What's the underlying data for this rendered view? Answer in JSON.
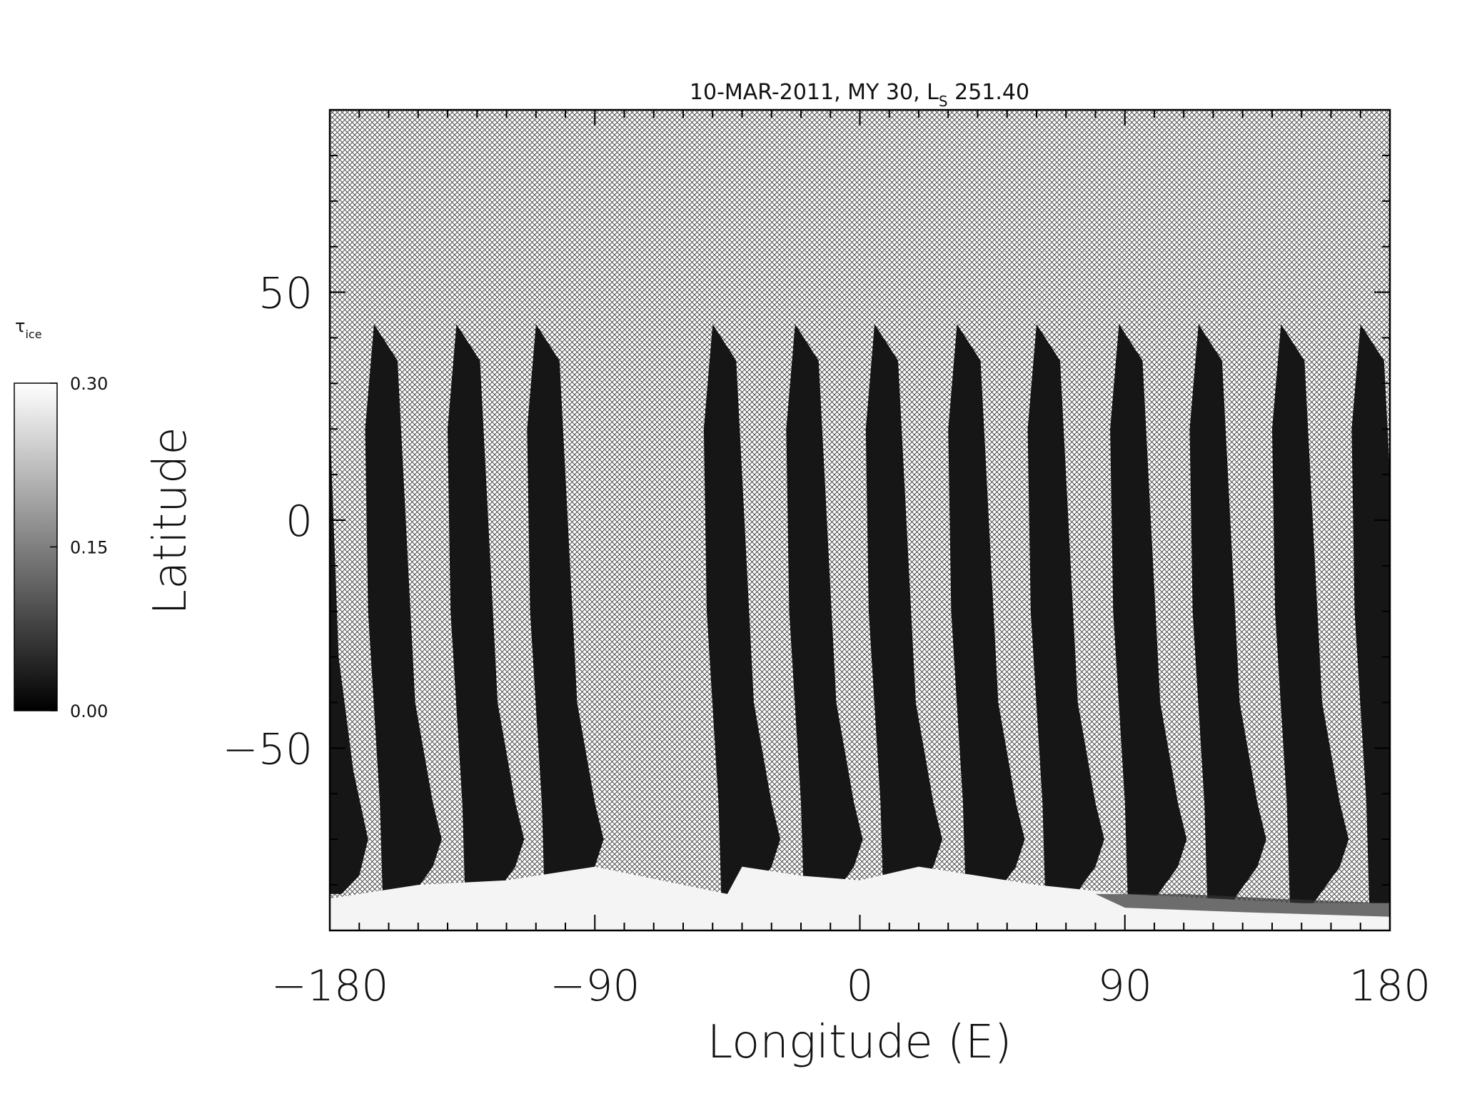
{
  "chart_data": {
    "type": "heatmap",
    "title": "10-MAR-2011, MY 30,  L",
    "title_subscript": "S",
    "title_tail": " 251.40",
    "xlabel": "Longitude (E)",
    "ylabel": "Latitude",
    "xlim": [
      -180,
      180
    ],
    "ylim": [
      -90,
      90
    ],
    "xticks": [
      -180,
      -90,
      0,
      90,
      180
    ],
    "xtick_labels": [
      "−180",
      "−90",
      "0",
      "90",
      "180"
    ],
    "yticks": [
      50,
      0,
      -50
    ],
    "ytick_labels": [
      "50",
      "0",
      "−50"
    ],
    "x_minor_step": 10,
    "y_minor_step": 10,
    "no_data": "crosshatch",
    "colorbar": {
      "label": "τ",
      "label_subscript": "ice",
      "range": [
        0.0,
        0.3
      ],
      "ticks": [
        0.3,
        0.15,
        0.0
      ],
      "tick_labels": [
        "0.30",
        "0.15",
        "0.00"
      ],
      "colors": [
        "#000000",
        "#ffffff"
      ]
    },
    "swaths": [
      {
        "lon_top": -165,
        "lat_top": 43
      },
      {
        "lon_top": -137,
        "lat_top": 43
      },
      {
        "lon_top": -110,
        "lat_top": 43
      },
      {
        "lon_top": -50,
        "lat_top": 43
      },
      {
        "lon_top": -22,
        "lat_top": 43
      },
      {
        "lon_top": 5,
        "lat_top": 43
      },
      {
        "lon_top": 33,
        "lat_top": 43
      },
      {
        "lon_top": 60,
        "lat_top": 43
      },
      {
        "lon_top": 88,
        "lat_top": 43
      },
      {
        "lon_top": 115,
        "lat_top": 43
      },
      {
        "lon_top": 143,
        "lat_top": 43
      },
      {
        "lon_top": 170,
        "lat_top": 43
      }
    ],
    "polar_cap": {
      "lat_edge": -76,
      "tau": 0.3
    }
  }
}
